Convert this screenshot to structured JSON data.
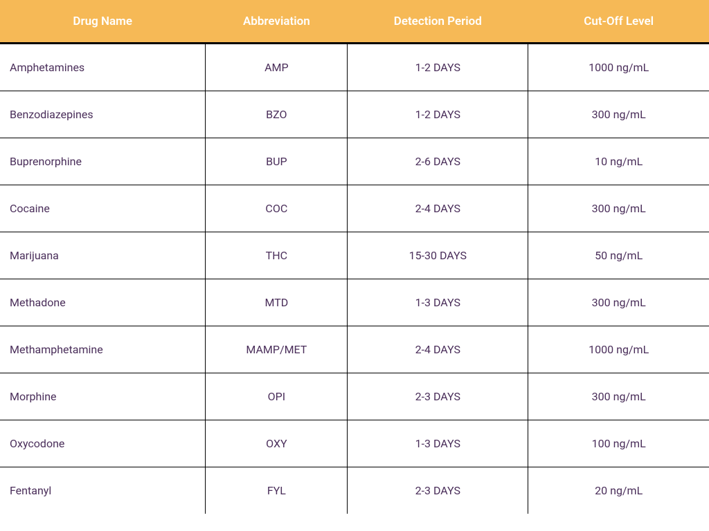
{
  "table": {
    "header_bg": "#f6b956",
    "header_fg": "#ffffff",
    "cell_fg": "#4a2e5a",
    "border_color": "#000000",
    "columns": [
      {
        "key": "name",
        "label": "Drug Name",
        "align": "left"
      },
      {
        "key": "abbr",
        "label": "Abbreviation",
        "align": "center"
      },
      {
        "key": "period",
        "label": "Detection Period",
        "align": "center"
      },
      {
        "key": "cutoff",
        "label": "Cut-Off Level",
        "align": "center"
      }
    ],
    "rows": [
      {
        "name": "Amphetamines",
        "abbr": "AMP",
        "period": "1-2 DAYS",
        "cutoff": "1000 ng/mL"
      },
      {
        "name": "Benzodiazepines",
        "abbr": "BZO",
        "period": "1-2 DAYS",
        "cutoff": "300 ng/mL"
      },
      {
        "name": "Buprenorphine",
        "abbr": "BUP",
        "period": "2-6 DAYS",
        "cutoff": "10 ng/mL"
      },
      {
        "name": "Cocaine",
        "abbr": "COC",
        "period": "2-4 DAYS",
        "cutoff": "300 ng/mL"
      },
      {
        "name": "Marijuana",
        "abbr": "THC",
        "period": "15-30 DAYS",
        "cutoff": "50 ng/mL"
      },
      {
        "name": "Methadone",
        "abbr": "MTD",
        "period": "1-3 DAYS",
        "cutoff": "300 ng/mL"
      },
      {
        "name": "Methamphetamine",
        "abbr": "MAMP/MET",
        "period": "2-4 DAYS",
        "cutoff": "1000 ng/mL"
      },
      {
        "name": "Morphine",
        "abbr": "OPI",
        "period": "2-3 DAYS",
        "cutoff": "300 ng/mL"
      },
      {
        "name": "Oxycodone",
        "abbr": "OXY",
        "period": "1-3 DAYS",
        "cutoff": "100 ng/mL"
      },
      {
        "name": "Fentanyl",
        "abbr": "FYL",
        "period": "2-3 DAYS",
        "cutoff": "20 ng/mL"
      }
    ]
  }
}
